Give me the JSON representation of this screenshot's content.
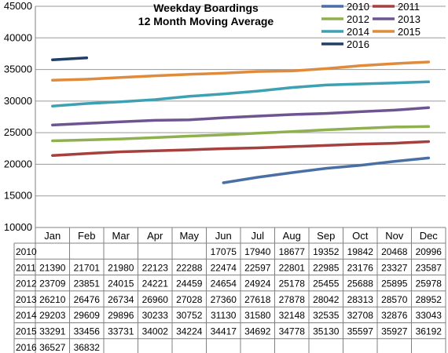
{
  "chart_data": {
    "type": "line",
    "title": "Weekday Boardings",
    "subtitle": "12 Month Moving Average",
    "categories": [
      "Jan",
      "Feb",
      "Mar",
      "Apr",
      "May",
      "Jun",
      "Jul",
      "Aug",
      "Sep",
      "Oct",
      "Nov",
      "Dec"
    ],
    "ylim": [
      10000,
      45000
    ],
    "yticks": [
      "10000",
      "15000",
      "20000",
      "25000",
      "30000",
      "35000",
      "40000",
      "45000"
    ],
    "grid": "horizontal",
    "legend_position": "top-right",
    "series": [
      {
        "name": "2010",
        "color": "#4a6fa5",
        "values": [
          null,
          null,
          null,
          null,
          null,
          17075,
          17940,
          18677,
          19352,
          19842,
          20468,
          20996
        ]
      },
      {
        "name": "2011",
        "color": "#a6403e",
        "values": [
          21390,
          21701,
          21980,
          22123,
          22288,
          22474,
          22597,
          22801,
          22985,
          23176,
          23327,
          23587
        ]
      },
      {
        "name": "2012",
        "color": "#8fb04e",
        "values": [
          23709,
          23851,
          24015,
          24221,
          24459,
          24654,
          24924,
          25178,
          25455,
          25688,
          25895,
          25978
        ]
      },
      {
        "name": "2013",
        "color": "#6e5491",
        "values": [
          26210,
          26476,
          26734,
          26960,
          27028,
          27360,
          27618,
          27878,
          28042,
          28313,
          28570,
          28952
        ]
      },
      {
        "name": "2014",
        "color": "#3ea1b3",
        "values": [
          29203,
          29609,
          29896,
          30233,
          30752,
          31130,
          31580,
          32148,
          32535,
          32708,
          32876,
          33043
        ]
      },
      {
        "name": "2015",
        "color": "#e08a3c",
        "values": [
          33291,
          33456,
          33731,
          34002,
          34224,
          34417,
          34692,
          34778,
          35130,
          35597,
          35927,
          36192
        ]
      },
      {
        "name": "2016",
        "color": "#1f3f66",
        "values": [
          36527,
          36832,
          null,
          null,
          null,
          null,
          null,
          null,
          null,
          null,
          null,
          null
        ]
      }
    ]
  }
}
